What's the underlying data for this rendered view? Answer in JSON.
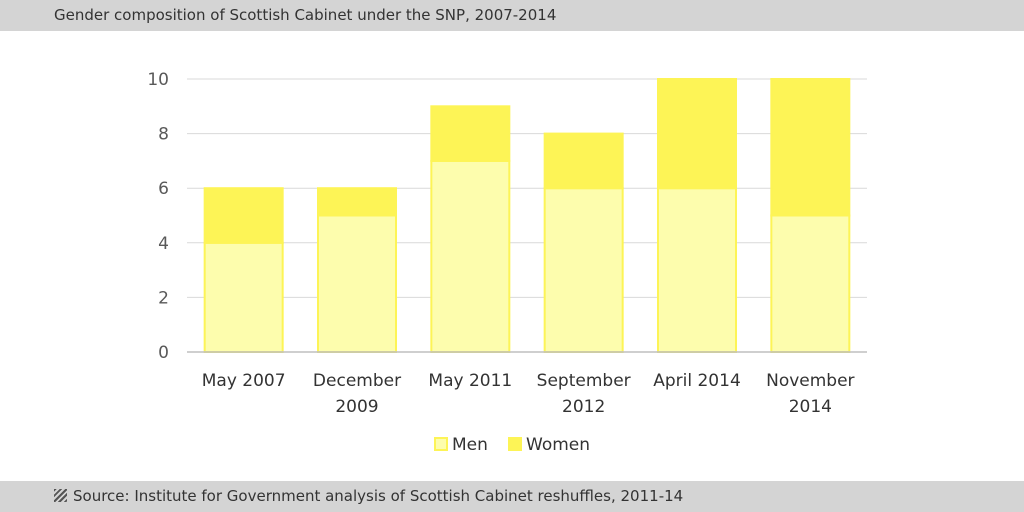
{
  "header": {
    "title": "Gender composition of Scottish Cabinet under the SNP, 2007-2014"
  },
  "footer": {
    "source": "Source: Institute for Government analysis of Scottish Cabinet reshuffles, 2011-14",
    "icon": "striped-square-icon"
  },
  "colors": {
    "men": "#fdfdad",
    "women": "#fdf456",
    "grid": "#d9d9d9",
    "axis": "#bfbfbf"
  },
  "chart_data": {
    "type": "bar",
    "stacked": true,
    "title": "Gender composition of Scottish Cabinet under the SNP, 2007-2014",
    "categories": [
      [
        "May 2007"
      ],
      [
        "December",
        "2009"
      ],
      [
        "May 2011"
      ],
      [
        "September",
        "2012"
      ],
      [
        "April 2014"
      ],
      [
        "November",
        "2014"
      ]
    ],
    "series": [
      {
        "name": "Men",
        "values": [
          4,
          5,
          7,
          6,
          6,
          5
        ]
      },
      {
        "name": "Women",
        "values": [
          2,
          1,
          2,
          2,
          4,
          5
        ]
      }
    ],
    "ylim": [
      0,
      10
    ],
    "yticks": [
      0,
      2,
      4,
      6,
      8,
      10
    ],
    "grid": true,
    "legend": "bottom"
  }
}
